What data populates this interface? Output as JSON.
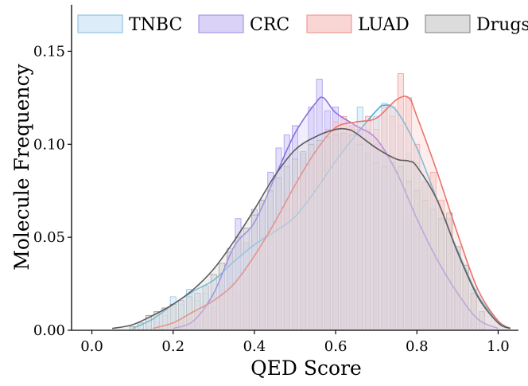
{
  "chart_data": {
    "type": "histogram",
    "xlabel": "QED Score",
    "ylabel": "Molecule Frequency",
    "xlim": [
      -0.05,
      1.05
    ],
    "ylim": [
      0.0,
      0.175
    ],
    "x_ticks": [
      0.0,
      0.2,
      0.4,
      0.6,
      0.8,
      1.0
    ],
    "x_tick_labels": [
      "0.0",
      "0.2",
      "0.4",
      "0.6",
      "0.8",
      "1.0"
    ],
    "y_ticks": [
      0.0,
      0.05,
      0.1,
      0.15
    ],
    "y_tick_labels": [
      "0.00",
      "0.05",
      "0.10",
      "0.15"
    ],
    "grid": false,
    "legend_position": "top",
    "bin_width": 0.02,
    "series": [
      {
        "name": "TNBC",
        "fill": "#d6e9f8",
        "edge": "#8ec4e6",
        "line": "#4aaed8",
        "bins": [
          [
            0.14,
            0.002
          ],
          [
            0.16,
            0.004
          ],
          [
            0.18,
            0.008
          ],
          [
            0.2,
            0.018
          ],
          [
            0.22,
            0.014
          ],
          [
            0.24,
            0.022
          ],
          [
            0.26,
            0.016
          ],
          [
            0.28,
            0.02
          ],
          [
            0.3,
            0.018
          ],
          [
            0.32,
            0.024
          ],
          [
            0.34,
            0.044
          ],
          [
            0.36,
            0.046
          ],
          [
            0.38,
            0.033
          ],
          [
            0.4,
            0.035
          ],
          [
            0.42,
            0.036
          ],
          [
            0.44,
            0.04
          ],
          [
            0.46,
            0.05
          ],
          [
            0.48,
            0.052
          ],
          [
            0.5,
            0.065
          ],
          [
            0.52,
            0.07
          ],
          [
            0.54,
            0.075
          ],
          [
            0.56,
            0.085
          ],
          [
            0.58,
            0.09
          ],
          [
            0.6,
            0.097
          ],
          [
            0.62,
            0.105
          ],
          [
            0.64,
            0.11
          ],
          [
            0.66,
            0.12
          ],
          [
            0.68,
            0.108
          ],
          [
            0.7,
            0.115
          ],
          [
            0.72,
            0.122
          ],
          [
            0.74,
            0.12
          ],
          [
            0.76,
            0.11
          ],
          [
            0.78,
            0.095
          ],
          [
            0.8,
            0.09
          ],
          [
            0.82,
            0.08
          ],
          [
            0.84,
            0.07
          ],
          [
            0.86,
            0.06
          ],
          [
            0.88,
            0.05
          ],
          [
            0.9,
            0.035
          ],
          [
            0.92,
            0.02
          ],
          [
            0.94,
            0.022
          ],
          [
            0.96,
            0.01
          ]
        ],
        "kde": [
          [
            0.1,
            0.001
          ],
          [
            0.15,
            0.006
          ],
          [
            0.2,
            0.014
          ],
          [
            0.25,
            0.021
          ],
          [
            0.3,
            0.027
          ],
          [
            0.35,
            0.037
          ],
          [
            0.4,
            0.046
          ],
          [
            0.45,
            0.053
          ],
          [
            0.5,
            0.061
          ],
          [
            0.55,
            0.075
          ],
          [
            0.6,
            0.091
          ],
          [
            0.65,
            0.105
          ],
          [
            0.7,
            0.118
          ],
          [
            0.72,
            0.121
          ],
          [
            0.75,
            0.118
          ],
          [
            0.8,
            0.098
          ],
          [
            0.85,
            0.07
          ],
          [
            0.9,
            0.043
          ],
          [
            0.95,
            0.019
          ],
          [
            1.0,
            0.005
          ],
          [
            1.03,
            0.001
          ]
        ]
      },
      {
        "name": "CRC",
        "fill": "#d3cbf6",
        "edge": "#a596e8",
        "line": "#8a6fe2",
        "bins": [
          [
            0.26,
            0.004
          ],
          [
            0.28,
            0.008
          ],
          [
            0.3,
            0.012
          ],
          [
            0.32,
            0.03
          ],
          [
            0.34,
            0.04
          ],
          [
            0.36,
            0.06
          ],
          [
            0.38,
            0.047
          ],
          [
            0.4,
            0.065
          ],
          [
            0.42,
            0.07
          ],
          [
            0.44,
            0.085
          ],
          [
            0.46,
            0.098
          ],
          [
            0.48,
            0.105
          ],
          [
            0.5,
            0.11
          ],
          [
            0.52,
            0.095
          ],
          [
            0.54,
            0.12
          ],
          [
            0.56,
            0.135
          ],
          [
            0.58,
            0.118
          ],
          [
            0.6,
            0.12
          ],
          [
            0.62,
            0.105
          ],
          [
            0.64,
            0.1
          ],
          [
            0.66,
            0.108
          ],
          [
            0.68,
            0.095
          ],
          [
            0.7,
            0.1
          ],
          [
            0.72,
            0.092
          ],
          [
            0.74,
            0.085
          ],
          [
            0.76,
            0.07
          ],
          [
            0.78,
            0.06
          ],
          [
            0.8,
            0.055
          ],
          [
            0.82,
            0.048
          ],
          [
            0.84,
            0.04
          ],
          [
            0.86,
            0.03
          ],
          [
            0.88,
            0.025
          ],
          [
            0.9,
            0.02
          ],
          [
            0.92,
            0.012
          ],
          [
            0.94,
            0.006
          ]
        ],
        "kde": [
          [
            0.2,
            0.001
          ],
          [
            0.25,
            0.005
          ],
          [
            0.3,
            0.02
          ],
          [
            0.35,
            0.045
          ],
          [
            0.4,
            0.058
          ],
          [
            0.45,
            0.082
          ],
          [
            0.5,
            0.106
          ],
          [
            0.55,
            0.122
          ],
          [
            0.57,
            0.125
          ],
          [
            0.6,
            0.117
          ],
          [
            0.65,
            0.11
          ],
          [
            0.7,
            0.103
          ],
          [
            0.75,
            0.085
          ],
          [
            0.8,
            0.06
          ],
          [
            0.85,
            0.038
          ],
          [
            0.9,
            0.02
          ],
          [
            0.95,
            0.006
          ],
          [
            1.0,
            0.001
          ]
        ]
      },
      {
        "name": "LUAD",
        "fill": "#f8cfcc",
        "edge": "#ee9a93",
        "line": "#e8736c",
        "bins": [
          [
            0.22,
            0.004
          ],
          [
            0.24,
            0.006
          ],
          [
            0.26,
            0.01
          ],
          [
            0.28,
            0.012
          ],
          [
            0.3,
            0.01
          ],
          [
            0.32,
            0.02
          ],
          [
            0.34,
            0.025
          ],
          [
            0.36,
            0.02
          ],
          [
            0.38,
            0.028
          ],
          [
            0.4,
            0.045
          ],
          [
            0.42,
            0.05
          ],
          [
            0.44,
            0.055
          ],
          [
            0.46,
            0.06
          ],
          [
            0.48,
            0.07
          ],
          [
            0.5,
            0.08
          ],
          [
            0.52,
            0.09
          ],
          [
            0.54,
            0.095
          ],
          [
            0.56,
            0.1
          ],
          [
            0.58,
            0.108
          ],
          [
            0.6,
            0.112
          ],
          [
            0.62,
            0.115
          ],
          [
            0.64,
            0.11
          ],
          [
            0.66,
            0.105
          ],
          [
            0.68,
            0.115
          ],
          [
            0.7,
            0.108
          ],
          [
            0.72,
            0.12
          ],
          [
            0.74,
            0.115
          ],
          [
            0.76,
            0.138
          ],
          [
            0.78,
            0.125
          ],
          [
            0.8,
            0.1
          ],
          [
            0.82,
            0.08
          ],
          [
            0.84,
            0.085
          ],
          [
            0.86,
            0.07
          ],
          [
            0.88,
            0.06
          ],
          [
            0.9,
            0.04
          ],
          [
            0.92,
            0.03
          ],
          [
            0.94,
            0.02
          ]
        ],
        "kde": [
          [
            0.15,
            0.001
          ],
          [
            0.2,
            0.004
          ],
          [
            0.25,
            0.01
          ],
          [
            0.3,
            0.016
          ],
          [
            0.35,
            0.025
          ],
          [
            0.4,
            0.04
          ],
          [
            0.45,
            0.058
          ],
          [
            0.5,
            0.078
          ],
          [
            0.55,
            0.096
          ],
          [
            0.6,
            0.109
          ],
          [
            0.65,
            0.112
          ],
          [
            0.7,
            0.114
          ],
          [
            0.75,
            0.124
          ],
          [
            0.78,
            0.125
          ],
          [
            0.8,
            0.115
          ],
          [
            0.85,
            0.085
          ],
          [
            0.9,
            0.052
          ],
          [
            0.95,
            0.022
          ],
          [
            1.0,
            0.005
          ],
          [
            1.03,
            0.001
          ]
        ]
      },
      {
        "name": "Drugs",
        "fill": "#d6d6d6",
        "edge": "#8f8f8f",
        "line": "#5c5c5c",
        "bins": [
          [
            0.1,
            0.002
          ],
          [
            0.12,
            0.004
          ],
          [
            0.14,
            0.008
          ],
          [
            0.16,
            0.01
          ],
          [
            0.18,
            0.012
          ],
          [
            0.2,
            0.014
          ],
          [
            0.22,
            0.016
          ],
          [
            0.24,
            0.018
          ],
          [
            0.26,
            0.02
          ],
          [
            0.28,
            0.024
          ],
          [
            0.3,
            0.03
          ],
          [
            0.32,
            0.036
          ],
          [
            0.34,
            0.042
          ],
          [
            0.36,
            0.05
          ],
          [
            0.38,
            0.055
          ],
          [
            0.4,
            0.062
          ],
          [
            0.42,
            0.07
          ],
          [
            0.44,
            0.075
          ],
          [
            0.46,
            0.082
          ],
          [
            0.48,
            0.088
          ],
          [
            0.5,
            0.092
          ],
          [
            0.52,
            0.096
          ],
          [
            0.54,
            0.1
          ],
          [
            0.56,
            0.102
          ],
          [
            0.58,
            0.104
          ],
          [
            0.6,
            0.105
          ],
          [
            0.62,
            0.106
          ],
          [
            0.64,
            0.105
          ],
          [
            0.66,
            0.1
          ],
          [
            0.68,
            0.095
          ],
          [
            0.7,
            0.09
          ],
          [
            0.72,
            0.088
          ],
          [
            0.74,
            0.09
          ],
          [
            0.76,
            0.088
          ],
          [
            0.78,
            0.08
          ],
          [
            0.8,
            0.075
          ],
          [
            0.82,
            0.07
          ],
          [
            0.84,
            0.065
          ],
          [
            0.86,
            0.06
          ],
          [
            0.88,
            0.063
          ],
          [
            0.9,
            0.045
          ],
          [
            0.92,
            0.035
          ],
          [
            0.94,
            0.02
          ],
          [
            0.96,
            0.01
          ]
        ],
        "kde": [
          [
            0.05,
            0.001
          ],
          [
            0.1,
            0.003
          ],
          [
            0.15,
            0.008
          ],
          [
            0.2,
            0.014
          ],
          [
            0.25,
            0.022
          ],
          [
            0.3,
            0.033
          ],
          [
            0.35,
            0.048
          ],
          [
            0.4,
            0.065
          ],
          [
            0.45,
            0.083
          ],
          [
            0.5,
            0.097
          ],
          [
            0.55,
            0.104
          ],
          [
            0.6,
            0.108
          ],
          [
            0.63,
            0.108
          ],
          [
            0.65,
            0.106
          ],
          [
            0.7,
            0.098
          ],
          [
            0.75,
            0.092
          ],
          [
            0.78,
            0.091
          ],
          [
            0.8,
            0.088
          ],
          [
            0.85,
            0.07
          ],
          [
            0.9,
            0.042
          ],
          [
            0.95,
            0.018
          ],
          [
            1.0,
            0.004
          ],
          [
            1.03,
            0.001
          ]
        ]
      }
    ]
  }
}
